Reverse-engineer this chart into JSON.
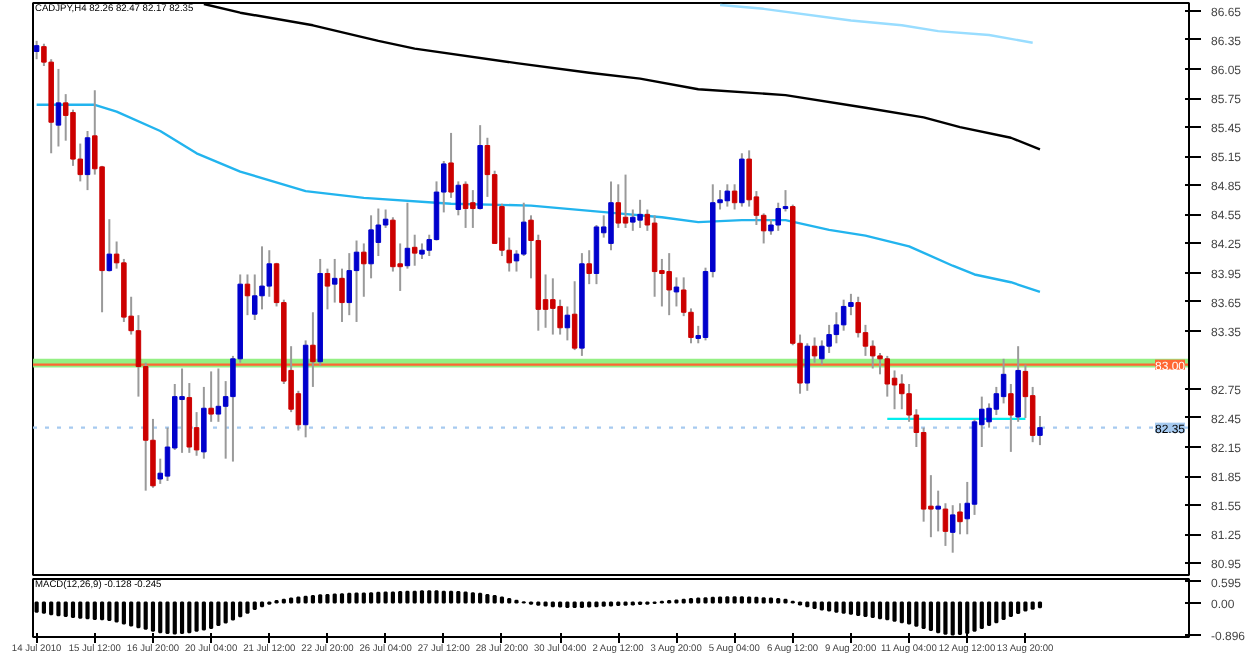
{
  "chart_data": [
    {
      "type": "candlestick",
      "title": "CADJPY,H4 82.26 82.47 82.17 82.35",
      "categories": [
        null,
        null,
        null,
        null,
        null,
        null,
        null,
        null,
        null,
        null,
        null,
        null,
        null,
        null,
        null,
        null,
        null,
        null,
        null,
        null,
        null,
        null,
        null,
        null,
        null,
        null,
        null,
        null,
        null,
        null,
        null,
        null,
        null,
        null,
        null,
        null,
        null,
        null,
        null,
        null,
        null,
        null,
        null,
        null,
        null,
        null,
        null,
        null,
        null,
        null,
        null,
        null,
        null,
        null,
        null,
        null,
        null,
        null,
        null,
        null,
        null,
        null,
        null,
        null,
        null,
        null,
        null,
        null,
        null,
        null,
        null,
        null,
        null,
        null,
        null,
        null,
        null,
        null,
        null,
        null,
        null,
        null,
        null,
        null,
        null,
        null,
        null,
        null,
        null,
        null,
        null,
        null,
        null,
        null,
        null,
        null,
        null,
        null,
        null,
        null,
        null,
        null,
        null,
        null,
        null,
        null,
        null,
        null,
        null,
        null,
        null,
        null,
        null,
        null,
        null,
        null,
        null,
        null,
        null,
        null,
        null,
        null,
        null,
        null,
        null,
        null,
        null,
        null,
        null,
        null,
        null,
        null,
        null,
        null,
        null,
        null,
        null,
        null,
        null,
        null,
        null,
        null,
        null,
        null,
        null,
        null,
        null,
        null,
        null,
        null,
        null,
        null,
        null,
        null,
        null,
        null,
        null,
        null,
        null
      ],
      "ohlc": [
        [
          86.23,
          86.34,
          86.15,
          86.29
        ],
        [
          86.28,
          86.31,
          86.08,
          86.12
        ],
        [
          86.12,
          86.15,
          85.18,
          85.5
        ],
        [
          85.47,
          86.05,
          85.25,
          85.7
        ],
        [
          85.7,
          85.79,
          85.31,
          85.57
        ],
        [
          85.6,
          85.63,
          85.05,
          85.12
        ],
        [
          85.12,
          85.28,
          84.89,
          84.96
        ],
        [
          84.96,
          85.41,
          84.8,
          85.34
        ],
        [
          85.36,
          85.83,
          84.96,
          85.02
        ],
        [
          85.04,
          85.05,
          83.54,
          83.97
        ],
        [
          83.97,
          84.5,
          83.96,
          84.14
        ],
        [
          84.14,
          84.27,
          83.99,
          84.05
        ],
        [
          84.05,
          84.09,
          83.44,
          83.49
        ],
        [
          83.5,
          83.7,
          83.31,
          83.35
        ],
        [
          83.35,
          83.51,
          82.67,
          82.98
        ],
        [
          82.98,
          83.02,
          81.7,
          82.22
        ],
        [
          82.22,
          82.44,
          81.73,
          81.75
        ],
        [
          81.82,
          82.03,
          81.77,
          81.88
        ],
        [
          81.85,
          82.35,
          81.8,
          82.15
        ],
        [
          82.14,
          82.8,
          82.12,
          82.67
        ],
        [
          82.64,
          82.96,
          82.09,
          82.67
        ],
        [
          82.66,
          82.81,
          82.09,
          82.15
        ],
        [
          82.35,
          82.51,
          82.06,
          82.12
        ],
        [
          82.1,
          82.77,
          82.03,
          82.55
        ],
        [
          82.55,
          82.93,
          82.41,
          82.49
        ],
        [
          82.49,
          82.96,
          82.41,
          82.57
        ],
        [
          82.57,
          82.83,
          82.03,
          82.67
        ],
        [
          82.67,
          83.09,
          82.0,
          83.06
        ],
        [
          83.06,
          83.93,
          83.02,
          83.83
        ],
        [
          83.83,
          83.93,
          83.51,
          83.71
        ],
        [
          83.52,
          83.93,
          83.46,
          83.71
        ],
        [
          83.71,
          84.22,
          83.57,
          83.81
        ],
        [
          83.81,
          84.18,
          83.7,
          84.04
        ],
        [
          84.04,
          84.05,
          83.6,
          83.64
        ],
        [
          83.64,
          83.67,
          82.8,
          82.83
        ],
        [
          82.94,
          83.19,
          82.51,
          82.54
        ],
        [
          82.7,
          82.73,
          82.32,
          82.38
        ],
        [
          82.38,
          83.25,
          82.25,
          83.2
        ],
        [
          83.2,
          83.54,
          82.77,
          83.03
        ],
        [
          83.03,
          84.09,
          82.99,
          83.94
        ],
        [
          83.94,
          83.99,
          83.57,
          83.81
        ],
        [
          83.83,
          84.09,
          83.64,
          83.89
        ],
        [
          83.89,
          83.99,
          83.44,
          83.64
        ],
        [
          83.64,
          84.15,
          83.51,
          83.97
        ],
        [
          83.97,
          84.28,
          83.44,
          84.16
        ],
        [
          84.16,
          84.25,
          83.7,
          84.04
        ],
        [
          84.04,
          84.54,
          83.89,
          84.39
        ],
        [
          84.26,
          84.61,
          84.12,
          84.44
        ],
        [
          84.44,
          84.6,
          84.41,
          84.5
        ],
        [
          84.49,
          84.52,
          83.96,
          84.01
        ],
        [
          84.04,
          84.25,
          83.76,
          84.01
        ],
        [
          84.02,
          84.67,
          83.99,
          84.2
        ],
        [
          84.21,
          84.34,
          84.02,
          84.15
        ],
        [
          84.14,
          84.25,
          84.09,
          84.18
        ],
        [
          84.18,
          84.34,
          84.12,
          84.29
        ],
        [
          84.29,
          84.89,
          84.28,
          84.78
        ],
        [
          84.78,
          85.1,
          84.57,
          85.07
        ],
        [
          85.08,
          85.39,
          84.72,
          84.78
        ],
        [
          84.6,
          84.89,
          84.54,
          84.85
        ],
        [
          84.86,
          84.89,
          84.41,
          84.61
        ],
        [
          84.67,
          84.8,
          84.41,
          84.61
        ],
        [
          84.61,
          85.47,
          84.6,
          85.26
        ],
        [
          85.26,
          85.34,
          84.73,
          84.96
        ],
        [
          84.96,
          85.0,
          84.25,
          84.25
        ],
        [
          84.63,
          84.66,
          84.12,
          84.18
        ],
        [
          84.18,
          84.31,
          83.96,
          84.05
        ],
        [
          84.07,
          84.18,
          83.96,
          84.14
        ],
        [
          84.14,
          84.67,
          84.12,
          84.47
        ],
        [
          84.49,
          84.54,
          83.89,
          84.28
        ],
        [
          84.28,
          84.34,
          83.35,
          83.57
        ],
        [
          83.67,
          83.93,
          83.38,
          83.57
        ],
        [
          83.67,
          83.89,
          83.31,
          83.58
        ],
        [
          83.6,
          83.67,
          83.31,
          83.38
        ],
        [
          83.38,
          83.6,
          83.25,
          83.51
        ],
        [
          83.52,
          83.86,
          83.15,
          83.17
        ],
        [
          83.17,
          84.15,
          83.09,
          84.04
        ],
        [
          84.04,
          84.18,
          83.83,
          83.94
        ],
        [
          83.94,
          84.44,
          83.83,
          84.42
        ],
        [
          84.36,
          84.54,
          84.31,
          84.42
        ],
        [
          84.25,
          84.89,
          84.18,
          84.67
        ],
        [
          84.67,
          84.86,
          84.41,
          84.46
        ],
        [
          84.52,
          84.96,
          84.41,
          84.46
        ],
        [
          84.47,
          84.6,
          84.38,
          84.52
        ],
        [
          84.49,
          84.7,
          84.41,
          84.55
        ],
        [
          84.55,
          84.6,
          84.38,
          84.44
        ],
        [
          84.46,
          84.54,
          83.7,
          83.96
        ],
        [
          83.97,
          84.09,
          83.6,
          83.94
        ],
        [
          83.96,
          84.15,
          83.51,
          83.77
        ],
        [
          83.75,
          83.9,
          83.6,
          83.8
        ],
        [
          83.77,
          83.9,
          83.5,
          83.54
        ],
        [
          83.54,
          83.58,
          83.22,
          83.28
        ],
        [
          83.27,
          83.4,
          83.22,
          83.3
        ],
        [
          83.28,
          84.0,
          83.25,
          83.96
        ],
        [
          83.96,
          84.86,
          83.9,
          84.67
        ],
        [
          84.67,
          84.8,
          84.6,
          84.7
        ],
        [
          84.69,
          84.86,
          84.63,
          84.79
        ],
        [
          84.79,
          84.86,
          84.6,
          84.67
        ],
        [
          84.67,
          85.18,
          84.63,
          85.12
        ],
        [
          85.12,
          85.21,
          84.63,
          84.7
        ],
        [
          84.73,
          84.79,
          84.44,
          84.54
        ],
        [
          84.54,
          84.56,
          84.25,
          84.38
        ],
        [
          84.38,
          84.5,
          84.34,
          84.44
        ],
        [
          84.44,
          84.67,
          84.38,
          84.61
        ],
        [
          84.61,
          84.8,
          84.58,
          84.63
        ],
        [
          84.63,
          84.65,
          83.2,
          83.22
        ],
        [
          83.22,
          83.31,
          82.7,
          82.81
        ],
        [
          82.81,
          83.22,
          82.73,
          83.19
        ],
        [
          83.19,
          83.28,
          83.02,
          83.09
        ],
        [
          83.06,
          83.25,
          83.0,
          83.19
        ],
        [
          83.19,
          83.41,
          83.12,
          83.31
        ],
        [
          83.31,
          83.54,
          83.22,
          83.41
        ],
        [
          83.41,
          83.67,
          83.35,
          83.6
        ],
        [
          83.6,
          83.73,
          83.51,
          83.64
        ],
        [
          83.64,
          83.7,
          83.28,
          83.33
        ],
        [
          83.33,
          83.41,
          83.09,
          83.19
        ],
        [
          83.19,
          83.25,
          82.96,
          83.09
        ],
        [
          83.09,
          83.12,
          82.9,
          83.06
        ],
        [
          83.06,
          83.09,
          82.67,
          82.8
        ],
        [
          82.86,
          82.94,
          82.54,
          82.79
        ],
        [
          82.8,
          82.9,
          82.54,
          82.7
        ],
        [
          82.7,
          82.8,
          82.41,
          82.48
        ],
        [
          82.48,
          82.54,
          82.15,
          82.3
        ],
        [
          82.3,
          82.35,
          81.38,
          81.51
        ],
        [
          81.54,
          81.86,
          81.22,
          81.51
        ],
        [
          81.51,
          81.7,
          81.28,
          81.54
        ],
        [
          81.51,
          81.57,
          81.13,
          81.28
        ],
        [
          81.27,
          81.55,
          81.06,
          81.45
        ],
        [
          81.48,
          81.57,
          81.25,
          81.38
        ],
        [
          81.41,
          81.79,
          81.25,
          81.57
        ],
        [
          81.56,
          82.44,
          81.45,
          82.41
        ],
        [
          82.38,
          82.67,
          82.15,
          82.54
        ],
        [
          82.41,
          82.6,
          82.35,
          82.55
        ],
        [
          82.54,
          82.77,
          82.48,
          82.7
        ],
        [
          82.67,
          83.06,
          82.6,
          82.9
        ],
        [
          82.7,
          82.8,
          82.1,
          82.48
        ],
        [
          82.46,
          83.19,
          82.41,
          82.94
        ],
        [
          82.93,
          83.0,
          82.45,
          82.67
        ],
        [
          82.68,
          82.77,
          82.2,
          82.27
        ],
        [
          82.27,
          82.47,
          82.17,
          82.35
        ],
        null,
        null,
        null,
        null,
        null,
        null,
        null,
        null,
        null,
        null,
        null,
        null,
        null,
        null,
        null,
        null,
        null,
        null,
        null,
        null
      ],
      "colors": [
        "#0000cc",
        "#cc0000",
        "#cc0000",
        "#0000cc",
        "#cc0000",
        "#cc0000",
        "#cc0000",
        "#0000cc",
        "#cc0000",
        "#cc0000",
        "#0000cc",
        "#cc0000",
        "#cc0000",
        "#cc0000",
        "#cc0000",
        "#cc0000",
        "#cc0000",
        "#0000cc",
        "#0000cc",
        "#0000cc",
        "#0000cc",
        "#cc0000",
        "#cc0000",
        "#0000cc",
        "#cc0000",
        "#0000cc",
        "#0000cc",
        "#0000cc",
        "#0000cc",
        "#cc0000",
        "#0000cc",
        "#0000cc",
        "#0000cc",
        "#cc0000",
        "#cc0000",
        "#cc0000",
        "#cc0000",
        "#0000cc",
        "#cc0000",
        "#0000cc",
        "#cc0000",
        "#0000cc",
        "#cc0000",
        "#0000cc",
        "#0000cc",
        "#cc0000",
        "#0000cc",
        "#0000cc",
        "#0000cc",
        "#cc0000",
        "#cc0000",
        "#0000cc",
        "#cc0000",
        "#0000cc",
        "#0000cc",
        "#0000cc",
        "#0000cc",
        "#cc0000",
        "#0000cc",
        "#cc0000",
        "#cc0000",
        "#0000cc",
        "#cc0000",
        "#cc0000",
        "#cc0000",
        "#cc0000",
        "#0000cc",
        "#0000cc",
        "#cc0000",
        "#cc0000",
        "#cc0000",
        "#cc0000",
        "#cc0000",
        "#0000cc",
        "#cc0000",
        "#0000cc",
        "#cc0000",
        "#0000cc",
        "#0000cc",
        "#0000cc",
        "#cc0000",
        "#cc0000",
        "#0000cc",
        "#0000cc",
        "#cc0000",
        "#cc0000",
        "#cc0000",
        "#cc0000",
        "#0000cc",
        "#cc0000",
        "#cc0000",
        "#0000cc",
        "#0000cc",
        "#0000cc",
        "#0000cc",
        "#0000cc",
        "#cc0000",
        "#0000cc",
        "#cc0000",
        "#cc0000",
        "#cc0000",
        "#0000cc",
        "#0000cc",
        "#0000cc",
        "#cc0000",
        "#cc0000",
        "#0000cc",
        "#cc0000",
        "#0000cc",
        "#0000cc",
        "#0000cc",
        "#0000cc",
        "#0000cc",
        "#cc0000",
        "#cc0000",
        "#cc0000",
        "#cc0000",
        "#cc0000",
        "#cc0000",
        "#cc0000",
        "#cc0000",
        "#cc0000",
        "#cc0000",
        "#cc0000",
        "#0000cc",
        "#cc0000",
        "#0000cc",
        "#cc0000",
        "#0000cc",
        "#0000cc",
        "#0000cc",
        "#0000cc",
        "#0000cc",
        "#0000cc",
        "#cc0000",
        "#0000cc",
        "#cc0000",
        "#cc0000",
        "#0000cc",
        null,
        null,
        null,
        null,
        null,
        null,
        null,
        null,
        null,
        null,
        null,
        null,
        null,
        null,
        null,
        null,
        null,
        null,
        null,
        null
      ],
      "series": [
        {
          "type": "line",
          "color": "#000000",
          "values": [
            null,
            null,
            null,
            null,
            null,
            null,
            null,
            null,
            null,
            null,
            null,
            null,
            null,
            null,
            null,
            null,
            null,
            null,
            null,
            null,
            null,
            null,
            null,
            86.72,
            null,
            null,
            null,
            null,
            86.63,
            null,
            null,
            null,
            null,
            null,
            null,
            null,
            null,
            null,
            86.5,
            null,
            null,
            null,
            null,
            null,
            null,
            null,
            null,
            86.34,
            null,
            null,
            null,
            null,
            86.26,
            null,
            null,
            null,
            null,
            null,
            null,
            null,
            null,
            null,
            null,
            null,
            null,
            null,
            86.11,
            null,
            null,
            null,
            null,
            null,
            null,
            null,
            null,
            null,
            86.01,
            null,
            null,
            null,
            null,
            null,
            null,
            85.95,
            null,
            null,
            null,
            null,
            null,
            null,
            null,
            85.84,
            null,
            null,
            null,
            null,
            null,
            null,
            null,
            null,
            null,
            null,
            null,
            85.78,
            null,
            null,
            null,
            null,
            null,
            null,
            null,
            null,
            null,
            null,
            85.65,
            null,
            null,
            null,
            null,
            null,
            null,
            null,
            85.55,
            null,
            null,
            null,
            null,
            85.45,
            null,
            null,
            null,
            null,
            null,
            null,
            85.34,
            null,
            null,
            null,
            85.22,
            null,
            null,
            null,
            null,
            null,
            null,
            null,
            null,
            null,
            null,
            null,
            null,
            null,
            null,
            null,
            null,
            null,
            null,
            null,
            null
          ]
        },
        {
          "type": "line",
          "color": "#22b4ee",
          "values": [
            85.68,
            null,
            null,
            null,
            null,
            null,
            null,
            null,
            85.68,
            null,
            null,
            85.61,
            null,
            null,
            null,
            null,
            null,
            85.41,
            null,
            null,
            null,
            null,
            85.18,
            null,
            null,
            null,
            null,
            null,
            84.99,
            null,
            null,
            null,
            null,
            null,
            null,
            null,
            null,
            84.79,
            null,
            null,
            null,
            null,
            null,
            null,
            null,
            84.72,
            null,
            null,
            null,
            null,
            null,
            null,
            null,
            null,
            null,
            null,
            null,
            84.66,
            null,
            null,
            null,
            null,
            null,
            null,
            null,
            null,
            null,
            null,
            84.64,
            null,
            null,
            null,
            null,
            null,
            null,
            null,
            null,
            null,
            null,
            null,
            84.56,
            null,
            null,
            null,
            null,
            null,
            84.52,
            null,
            null,
            null,
            null,
            84.47,
            null,
            null,
            null,
            null,
            null,
            84.49,
            null,
            null,
            null,
            null,
            null,
            84.49,
            null,
            null,
            null,
            null,
            null,
            84.39,
            null,
            null,
            null,
            null,
            84.33,
            null,
            null,
            null,
            null,
            null,
            84.22,
            null,
            null,
            null,
            null,
            null,
            84.02,
            null,
            null,
            83.93,
            null,
            null,
            null,
            null,
            83.85,
            null,
            null,
            null,
            83.75,
            null,
            null,
            null,
            null,
            null,
            null,
            null,
            null,
            null,
            null,
            null,
            null,
            null,
            null,
            null,
            null,
            null,
            null,
            null,
            null
          ]
        },
        {
          "type": "line",
          "color": "#99ddff",
          "values": [
            null,
            null,
            null,
            null,
            null,
            null,
            null,
            null,
            null,
            null,
            null,
            null,
            null,
            null,
            null,
            null,
            null,
            null,
            null,
            null,
            null,
            null,
            null,
            null,
            null,
            null,
            null,
            null,
            null,
            null,
            null,
            null,
            null,
            null,
            null,
            null,
            null,
            null,
            null,
            null,
            null,
            null,
            null,
            null,
            null,
            null,
            null,
            null,
            null,
            null,
            null,
            null,
            null,
            null,
            null,
            null,
            null,
            null,
            null,
            null,
            null,
            null,
            null,
            null,
            null,
            null,
            null,
            null,
            null,
            null,
            null,
            null,
            null,
            null,
            null,
            null,
            null,
            null,
            null,
            null,
            null,
            null,
            null,
            null,
            null,
            null,
            null,
            null,
            null,
            null,
            null,
            null,
            null,
            null,
            86.71,
            null,
            null,
            null,
            null,
            null,
            86.67,
            null,
            null,
            null,
            null,
            null,
            null,
            null,
            null,
            null,
            null,
            null,
            86.55,
            null,
            null,
            null,
            null,
            null,
            null,
            86.5,
            null,
            null,
            null,
            null,
            86.44,
            null,
            null,
            null,
            null,
            null,
            null,
            86.4,
            null,
            null,
            null,
            null,
            null,
            86.32,
            null,
            null,
            null,
            null,
            null,
            null,
            null,
            null,
            null,
            null,
            null,
            null,
            null,
            null,
            null,
            null,
            null,
            null,
            null,
            null,
            null
          ]
        },
        {
          "type": "line",
          "color": "#00eeee",
          "values": [
            null,
            null,
            null,
            null,
            null,
            null,
            null,
            null,
            null,
            null,
            null,
            null,
            null,
            null,
            null,
            null,
            null,
            null,
            null,
            null,
            null,
            null,
            null,
            null,
            null,
            null,
            null,
            null,
            null,
            null,
            null,
            null,
            null,
            null,
            null,
            null,
            null,
            null,
            null,
            null,
            null,
            null,
            null,
            null,
            null,
            null,
            null,
            null,
            null,
            null,
            null,
            null,
            null,
            null,
            null,
            null,
            null,
            null,
            null,
            null,
            null,
            null,
            null,
            null,
            null,
            null,
            null,
            null,
            null,
            null,
            null,
            null,
            null,
            null,
            null,
            null,
            null,
            null,
            null,
            null,
            null,
            null,
            null,
            null,
            null,
            null,
            null,
            null,
            null,
            null,
            null,
            null,
            null,
            null,
            null,
            null,
            null,
            null,
            null,
            null,
            null,
            null,
            null,
            null,
            null,
            null,
            null,
            null,
            null,
            null,
            null,
            null,
            null,
            null,
            null,
            null,
            null,
            82.44,
            null,
            null,
            null,
            null,
            null,
            null,
            null,
            null,
            null,
            null,
            null,
            null,
            null,
            null,
            null,
            null,
            null,
            null,
            82.44,
            null,
            null,
            null,
            null,
            null,
            null,
            null,
            null,
            null,
            null,
            null,
            null,
            null,
            null,
            null,
            null,
            null,
            null,
            null,
            null,
            null,
            null
          ]
        }
      ],
      "ylim": [
        80.83,
        86.73
      ],
      "yticks": [
        86.65,
        86.35,
        86.05,
        85.75,
        85.45,
        85.15,
        84.85,
        84.55,
        84.25,
        83.95,
        83.65,
        83.35,
        82.75,
        82.45,
        82.15,
        81.85,
        81.55,
        81.25,
        80.95
      ],
      "ref_lines": [
        {
          "axis": "y",
          "value": 83.0,
          "label": "83.00",
          "color": "#ff6633",
          "line_style": "solid"
        },
        {
          "axis": "y",
          "value": 82.35,
          "label": "82.35",
          "color": "#a6caf0",
          "line_style": "dotted"
        }
      ],
      "bands": [
        {
          "axis": "y",
          "from": 82.97,
          "to": 83.06,
          "color": "#88ee77"
        }
      ],
      "tick_labels": "y"
    },
    {
      "type": "bar",
      "title": "MACD(12,26,9) -0.128 -0.245",
      "color": "#000000",
      "categories": [
        "14 Jul 2010",
        null,
        null,
        null,
        null,
        null,
        null,
        null,
        "15 Jul 12:00",
        null,
        null,
        null,
        null,
        null,
        null,
        null,
        "16 Jul 20:00",
        null,
        null,
        null,
        null,
        null,
        null,
        null,
        "20 Jul 04:00",
        null,
        null,
        null,
        null,
        null,
        null,
        null,
        "21 Jul 12:00",
        null,
        null,
        null,
        null,
        null,
        null,
        null,
        "22 Jul 20:00",
        null,
        null,
        null,
        null,
        null,
        null,
        null,
        "26 Jul 04:00",
        null,
        null,
        null,
        null,
        null,
        null,
        null,
        "27 Jul 12:00",
        null,
        null,
        null,
        null,
        null,
        null,
        null,
        "28 Jul 20:00",
        null,
        null,
        null,
        null,
        null,
        null,
        null,
        "30 Jul 04:00",
        null,
        null,
        null,
        null,
        null,
        null,
        null,
        "2 Aug 12:00",
        null,
        null,
        null,
        null,
        null,
        null,
        null,
        "3 Aug 20:00",
        null,
        null,
        null,
        null,
        null,
        null,
        null,
        "5 Aug 04:00",
        null,
        null,
        null,
        null,
        null,
        null,
        null,
        "6 Aug 12:00",
        null,
        null,
        null,
        null,
        null,
        null,
        null,
        "9 Aug 20:00",
        null,
        null,
        null,
        null,
        null,
        null,
        null,
        "11 Aug 04:00",
        null,
        null,
        null,
        null,
        null,
        null,
        null,
        "12 Aug 12:00",
        null,
        null,
        null,
        null,
        null,
        null,
        null,
        "13 Aug 20:00",
        null,
        null,
        null,
        null,
        null,
        null,
        null,
        null,
        null,
        null,
        null,
        null,
        null,
        null,
        null,
        null,
        null,
        null,
        null,
        null,
        null,
        null
      ],
      "values": [
        -0.25,
        -0.28,
        -0.32,
        -0.35,
        -0.37,
        -0.4,
        -0.42,
        -0.43,
        -0.45,
        -0.46,
        -0.48,
        -0.52,
        -0.58,
        -0.63,
        -0.68,
        -0.72,
        -0.78,
        -0.82,
        -0.84,
        -0.85,
        -0.84,
        -0.82,
        -0.78,
        -0.74,
        -0.7,
        -0.62,
        -0.55,
        -0.47,
        -0.38,
        -0.28,
        -0.18,
        -0.1,
        -0.03,
        0.04,
        0.08,
        0.11,
        0.14,
        0.16,
        0.18,
        0.2,
        0.21,
        0.22,
        0.23,
        0.24,
        0.25,
        0.25,
        0.26,
        0.27,
        0.28,
        0.28,
        0.29,
        0.3,
        0.3,
        0.31,
        0.31,
        0.31,
        0.3,
        0.3,
        0.29,
        0.28,
        0.26,
        0.24,
        0.21,
        0.18,
        0.14,
        0.1,
        0.05,
        0.01,
        -0.03,
        -0.06,
        -0.08,
        -0.1,
        -0.11,
        -0.12,
        -0.12,
        -0.12,
        -0.11,
        -0.1,
        -0.09,
        -0.08,
        -0.07,
        -0.06,
        -0.05,
        -0.04,
        -0.03,
        -0.01,
        0.02,
        0.04,
        0.06,
        0.08,
        0.1,
        0.11,
        0.12,
        0.13,
        0.14,
        0.15,
        0.15,
        0.15,
        0.14,
        0.13,
        0.12,
        0.11,
        0.1,
        0.08,
        0.02,
        -0.05,
        -0.1,
        -0.15,
        -0.19,
        -0.22,
        -0.25,
        -0.28,
        -0.31,
        -0.34,
        -0.37,
        -0.4,
        -0.43,
        -0.46,
        -0.5,
        -0.54,
        -0.58,
        -0.64,
        -0.7,
        -0.76,
        -0.82,
        -0.86,
        -0.88,
        -0.87,
        -0.84,
        -0.78,
        -0.7,
        -0.62,
        -0.54,
        -0.45,
        -0.37,
        -0.29,
        -0.22,
        -0.17,
        -0.13,
        null,
        null,
        null,
        null,
        null,
        null,
        null,
        null,
        null,
        null,
        null,
        null,
        null,
        null,
        null,
        null,
        null,
        null,
        null,
        null
      ],
      "ylim": [
        -0.95,
        0.65
      ],
      "yticks": [
        0.595,
        {
          "value": 0,
          "label": "0.00"
        },
        -0.896
      ]
    }
  ]
}
